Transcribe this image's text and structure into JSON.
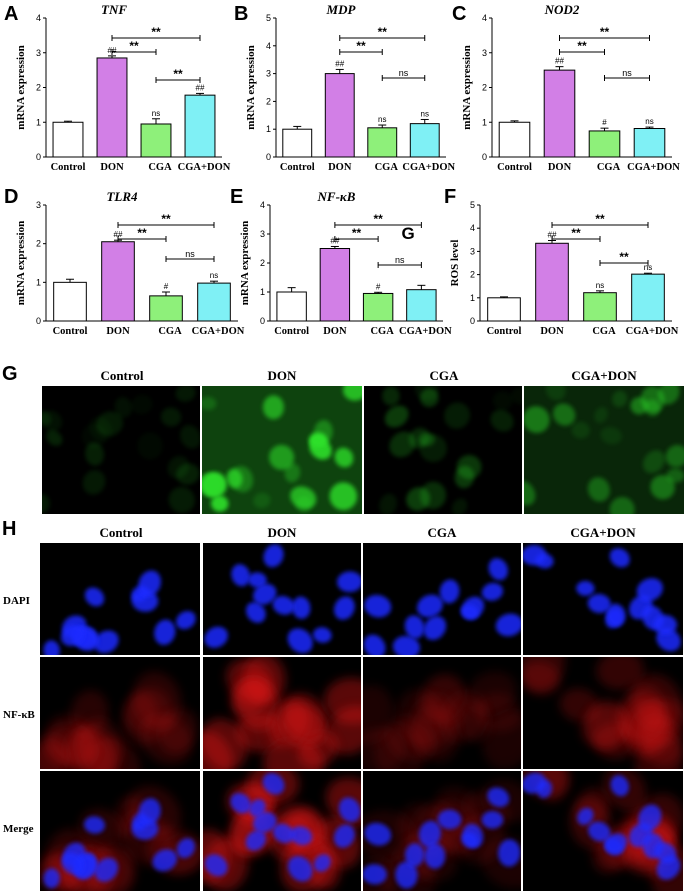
{
  "chart_data": [
    {
      "panel": "A",
      "type": "bar",
      "title": "TNF",
      "ylabel": "mRNA expression",
      "categories": [
        "Control",
        "DON",
        "CGA",
        "CGA+DON"
      ],
      "values": [
        1.0,
        2.85,
        0.95,
        1.78
      ],
      "errors": [
        0.03,
        0.06,
        0.15,
        0.05
      ],
      "ylim": [
        0,
        4
      ],
      "yticks": [
        "0",
        "1",
        "2",
        "3",
        "4"
      ],
      "markers": [
        "",
        "##",
        "ns",
        "##"
      ],
      "comparisons": [
        {
          "from": 1,
          "to": 3,
          "label": "**"
        },
        {
          "from": 1,
          "to": 2,
          "label": "**"
        },
        {
          "from": 2,
          "to": 3,
          "label": "**"
        }
      ]
    },
    {
      "panel": "B",
      "type": "bar",
      "title": "MDP",
      "ylabel": "mRNA expression",
      "categories": [
        "Control",
        "DON",
        "CGA",
        "CGA+DON"
      ],
      "values": [
        1.0,
        3.0,
        1.05,
        1.2
      ],
      "errors": [
        0.1,
        0.15,
        0.1,
        0.15
      ],
      "ylim": [
        0,
        5
      ],
      "yticks": [
        "0",
        "1",
        "2",
        "3",
        "4",
        "5"
      ],
      "markers": [
        "",
        "##",
        "ns",
        "ns"
      ],
      "comparisons": [
        {
          "from": 1,
          "to": 3,
          "label": "**"
        },
        {
          "from": 1,
          "to": 2,
          "label": "**"
        },
        {
          "from": 2,
          "to": 3,
          "label": "ns"
        }
      ]
    },
    {
      "panel": "C",
      "type": "bar",
      "title": "NOD2",
      "ylabel": "mRNA expression",
      "categories": [
        "Control",
        "DON",
        "CGA",
        "CGA+DON"
      ],
      "values": [
        1.0,
        2.5,
        0.75,
        0.82
      ],
      "errors": [
        0.04,
        0.1,
        0.08,
        0.04
      ],
      "ylim": [
        0,
        4
      ],
      "yticks": [
        "0",
        "1",
        "2",
        "3",
        "4"
      ],
      "markers": [
        "",
        "##",
        "#",
        "ns"
      ],
      "comparisons": [
        {
          "from": 1,
          "to": 3,
          "label": "**"
        },
        {
          "from": 1,
          "to": 2,
          "label": "**"
        },
        {
          "from": 2,
          "to": 3,
          "label": "ns"
        }
      ]
    },
    {
      "panel": "D",
      "type": "bar",
      "title": "TLR4",
      "ylabel": "mRNA expression",
      "categories": [
        "Control",
        "DON",
        "CGA",
        "CGA+DON"
      ],
      "values": [
        1.0,
        2.05,
        0.65,
        0.98
      ],
      "errors": [
        0.08,
        0.04,
        0.1,
        0.05
      ],
      "ylim": [
        0,
        3
      ],
      "yticks": [
        "0",
        "1",
        "2",
        "3"
      ],
      "markers": [
        "",
        "##",
        "#",
        "ns"
      ],
      "comparisons": [
        {
          "from": 1,
          "to": 3,
          "label": "**"
        },
        {
          "from": 1,
          "to": 2,
          "label": "**"
        },
        {
          "from": 2,
          "to": 3,
          "label": "ns"
        }
      ]
    },
    {
      "panel": "E",
      "type": "bar",
      "title": "NF-κB",
      "ylabel": "mRNA expression",
      "categories": [
        "Control",
        "DON",
        "CGA",
        "CGA+DON"
      ],
      "values": [
        1.0,
        2.5,
        0.95,
        1.08
      ],
      "errors": [
        0.15,
        0.07,
        0.04,
        0.15
      ],
      "ylim": [
        0,
        4
      ],
      "yticks": [
        "0",
        "1",
        "2",
        "3",
        "4"
      ],
      "markers": [
        "",
        "##",
        "#",
        ""
      ],
      "overlay_letter": "G",
      "comparisons": [
        {
          "from": 1,
          "to": 3,
          "label": "**"
        },
        {
          "from": 1,
          "to": 2,
          "label": "**"
        },
        {
          "from": 2,
          "to": 3,
          "label": "ns"
        }
      ]
    },
    {
      "panel": "F",
      "type": "bar",
      "title": "",
      "ylabel": "ROS level",
      "categories": [
        "Control",
        "DON",
        "CGA",
        "CGA+DON"
      ],
      "values": [
        1.0,
        3.35,
        1.22,
        2.02
      ],
      "errors": [
        0.04,
        0.12,
        0.08,
        0.04
      ],
      "ylim": [
        0,
        5
      ],
      "yticks": [
        "0",
        "1",
        "2",
        "3",
        "4",
        "5"
      ],
      "markers": [
        "",
        "##",
        "ns",
        "ns"
      ],
      "comparisons": [
        {
          "from": 1,
          "to": 3,
          "label": "**"
        },
        {
          "from": 1,
          "to": 2,
          "label": "**"
        },
        {
          "from": 2,
          "to": 3,
          "label": "**"
        }
      ]
    }
  ],
  "bar_colors": [
    "#ffffff",
    "#d27fe6",
    "#8ef07a",
    "#7ff0f5"
  ],
  "section_g": {
    "letter": "G",
    "columns": [
      "Control",
      "DON",
      "CGA",
      "CGA+DON"
    ],
    "stain_color": "#2ee02a",
    "intensity": [
      0.15,
      1.0,
      0.28,
      0.45
    ]
  },
  "section_h": {
    "letter": "H",
    "columns": [
      "Control",
      "DON",
      "CGA",
      "CGA+DON"
    ],
    "rows": [
      "DAPI",
      "NF-κB",
      "Merge"
    ],
    "nucleus_color": "#1a2aff",
    "stain_color": "#e01515",
    "red_intensity": [
      0.35,
      1.0,
      0.2,
      0.5
    ]
  }
}
